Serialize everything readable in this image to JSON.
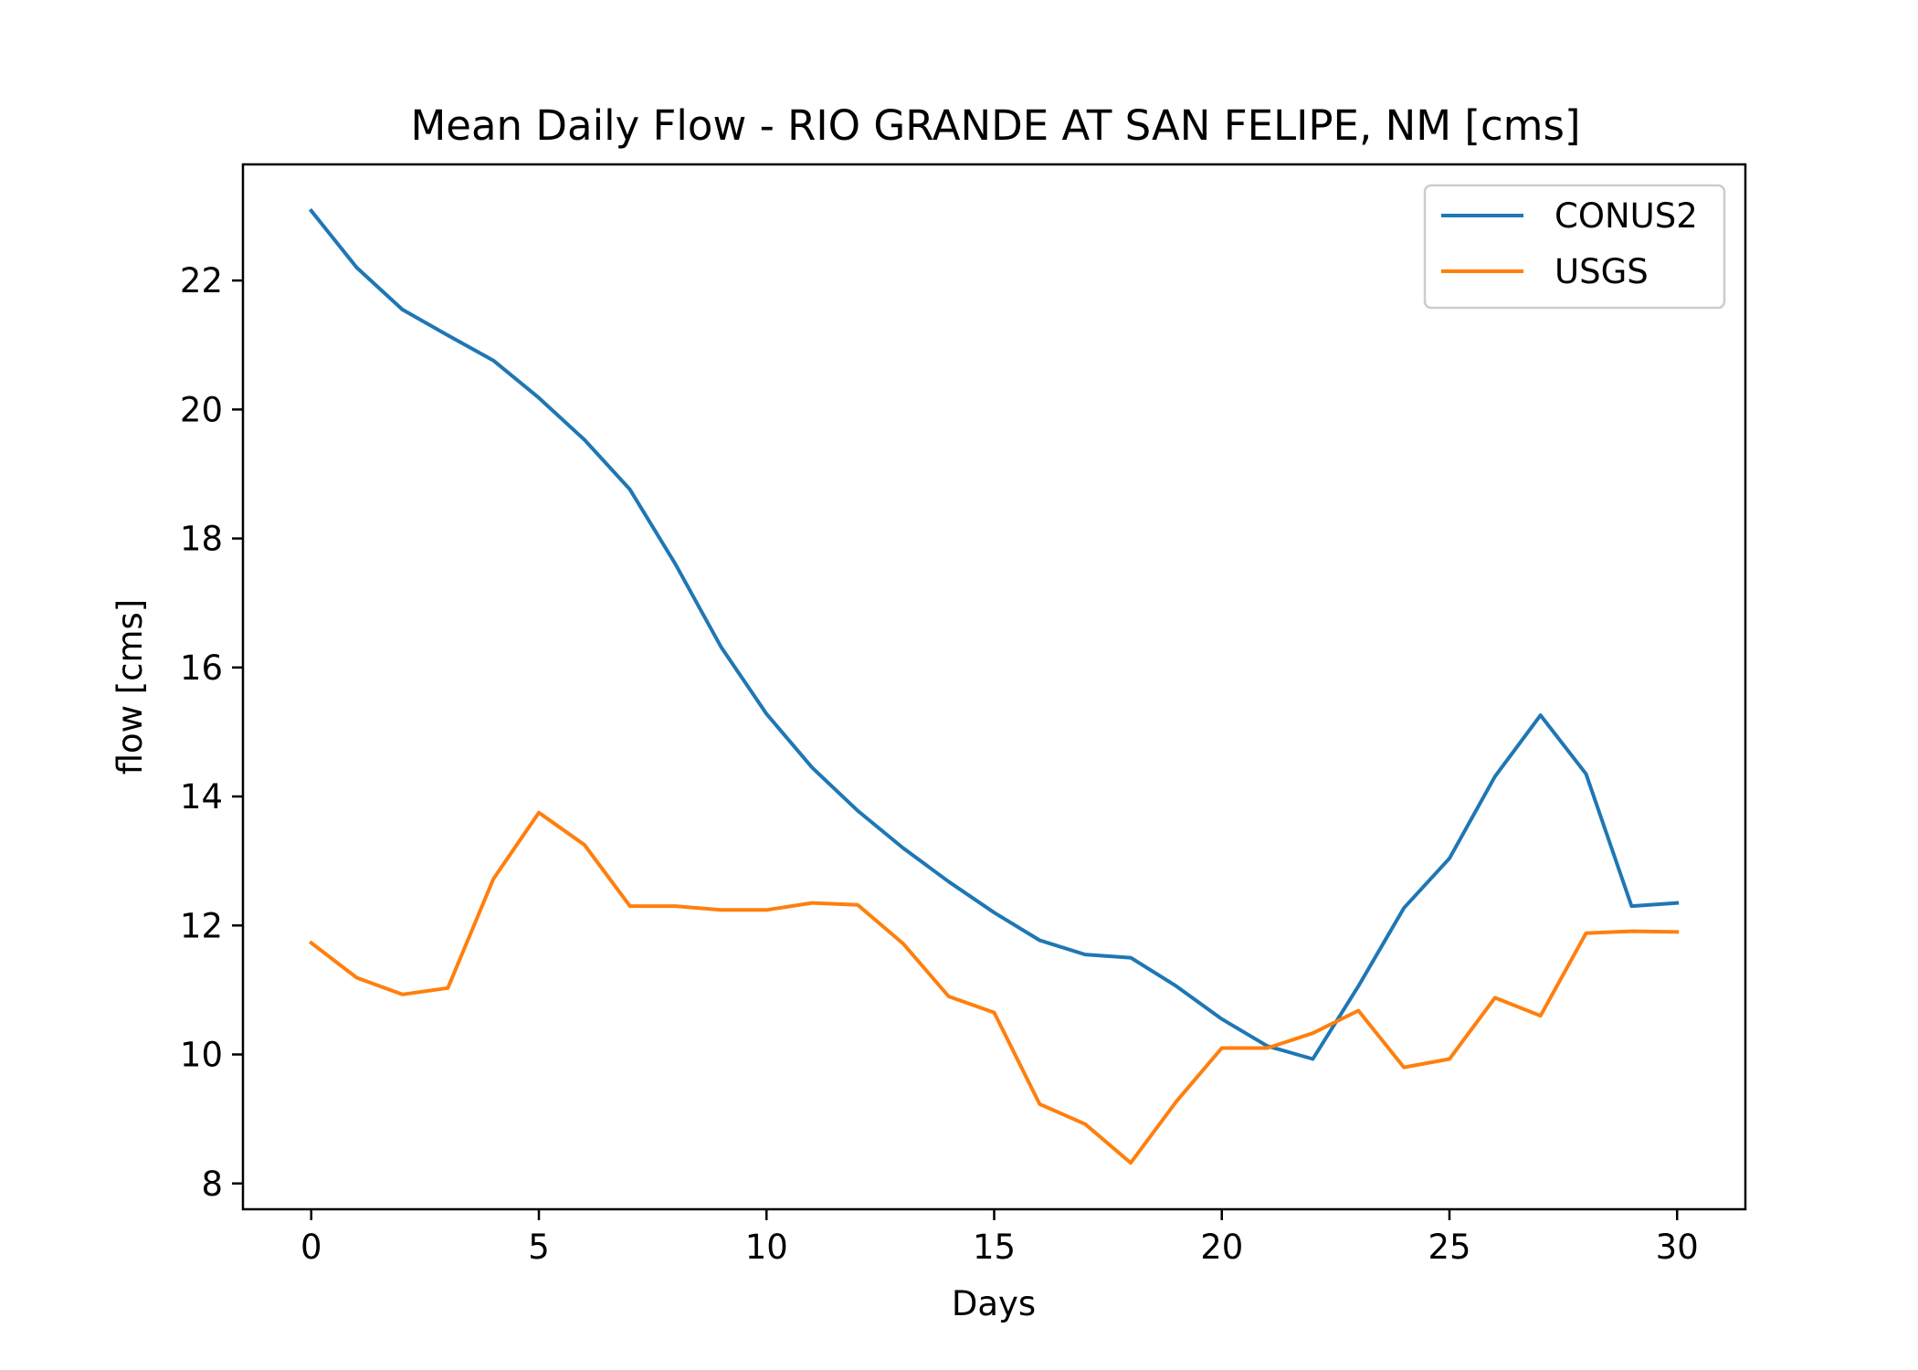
{
  "chart_data": {
    "type": "line",
    "title": "Mean Daily Flow - RIO GRANDE AT SAN FELIPE, NM [cms]",
    "xlabel": "Days",
    "ylabel": "flow [cms]",
    "xlim": [
      -1.5,
      31.5
    ],
    "ylim": [
      7.6,
      23.8
    ],
    "xticks": [
      0,
      5,
      10,
      15,
      20,
      25,
      30
    ],
    "yticks": [
      8,
      10,
      12,
      14,
      16,
      18,
      20,
      22
    ],
    "grid": false,
    "legend_position": "top-right",
    "x": [
      0,
      1,
      2,
      3,
      4,
      5,
      6,
      7,
      8,
      9,
      10,
      11,
      12,
      13,
      14,
      15,
      16,
      17,
      18,
      19,
      20,
      21,
      22,
      23,
      24,
      25,
      26,
      27,
      28,
      29,
      30
    ],
    "series": [
      {
        "name": "CONUS2",
        "color": "#1f77b4",
        "values": [
          23.08,
          22.2,
          21.55,
          21.15,
          20.76,
          20.18,
          19.53,
          18.76,
          17.6,
          16.32,
          15.28,
          14.45,
          13.78,
          13.2,
          12.68,
          12.2,
          11.77,
          11.55,
          11.5,
          11.06,
          10.55,
          10.13,
          9.93,
          11.06,
          12.27,
          13.04,
          14.31,
          15.26,
          14.35,
          12.3,
          12.35
        ]
      },
      {
        "name": "USGS",
        "color": "#ff7f0e",
        "values": [
          11.73,
          11.19,
          10.93,
          11.03,
          12.72,
          13.75,
          13.25,
          12.3,
          12.3,
          12.24,
          12.24,
          12.35,
          12.32,
          11.72,
          10.9,
          10.65,
          9.23,
          8.92,
          8.32,
          9.27,
          10.1,
          10.1,
          10.33,
          10.68,
          9.8,
          9.93,
          10.88,
          10.6,
          11.88,
          11.91,
          11.9
        ]
      }
    ]
  }
}
